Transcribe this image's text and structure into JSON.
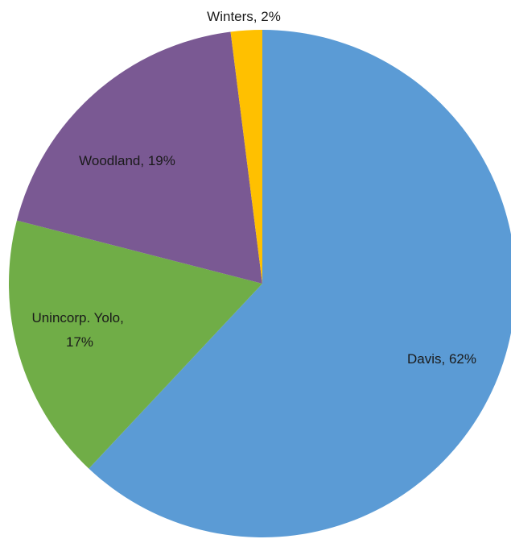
{
  "chart_data": {
    "type": "pie",
    "title": "",
    "slices": [
      {
        "name": "Davis",
        "value": 62,
        "label": "Davis, 62%",
        "color": "#5B9BD5"
      },
      {
        "name": "Unincorp. Yolo",
        "value": 17,
        "label": "Unincorp. Yolo, 17%",
        "color": "#70AD47"
      },
      {
        "name": "Woodland",
        "value": 19,
        "label": "Woodland, 19%",
        "color": "#7A5993"
      },
      {
        "name": "Winters",
        "value": 2,
        "label": "Winters, 2%",
        "color": "#FFC000"
      }
    ],
    "start_angle_deg": 0,
    "direction": "clockwise",
    "legend": "none"
  }
}
